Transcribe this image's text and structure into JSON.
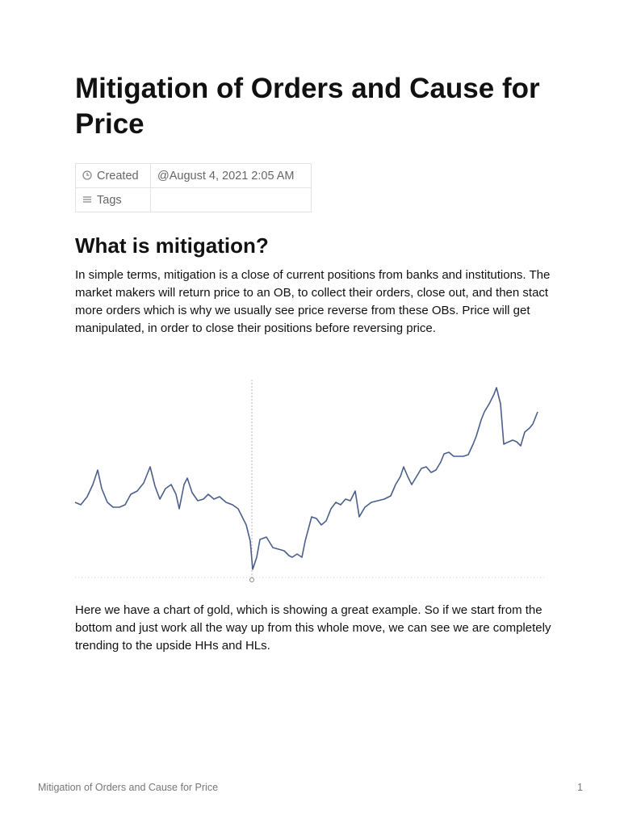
{
  "header": {
    "title": "Mitigation of Orders and Cause for Price"
  },
  "properties": [
    {
      "label": "Created",
      "value": "@August 4, 2021 2:05 AM"
    },
    {
      "label": "Tags"
    }
  ],
  "sections": [
    {
      "heading": "What is mitigation?",
      "paragraphs": [
        "In simple terms, mitigation is a close of current positions from banks and institutions. The market makers will return price to an OB, to collect their orders, close out, and then stact more orders which is why we usually see price reverse from these OBs. Price will get manipulated, in order to close their positions before reversing price.",
        "Here we have a chart of gold, which is showing a great example. So if we start from the bottom and just work all the way up from this whole move, we can see we are completely trending to the upside HHs and HLs."
      ]
    }
  ],
  "footer": {
    "title": "Mitigation of Orders and Cause for Price",
    "page": "1"
  }
}
